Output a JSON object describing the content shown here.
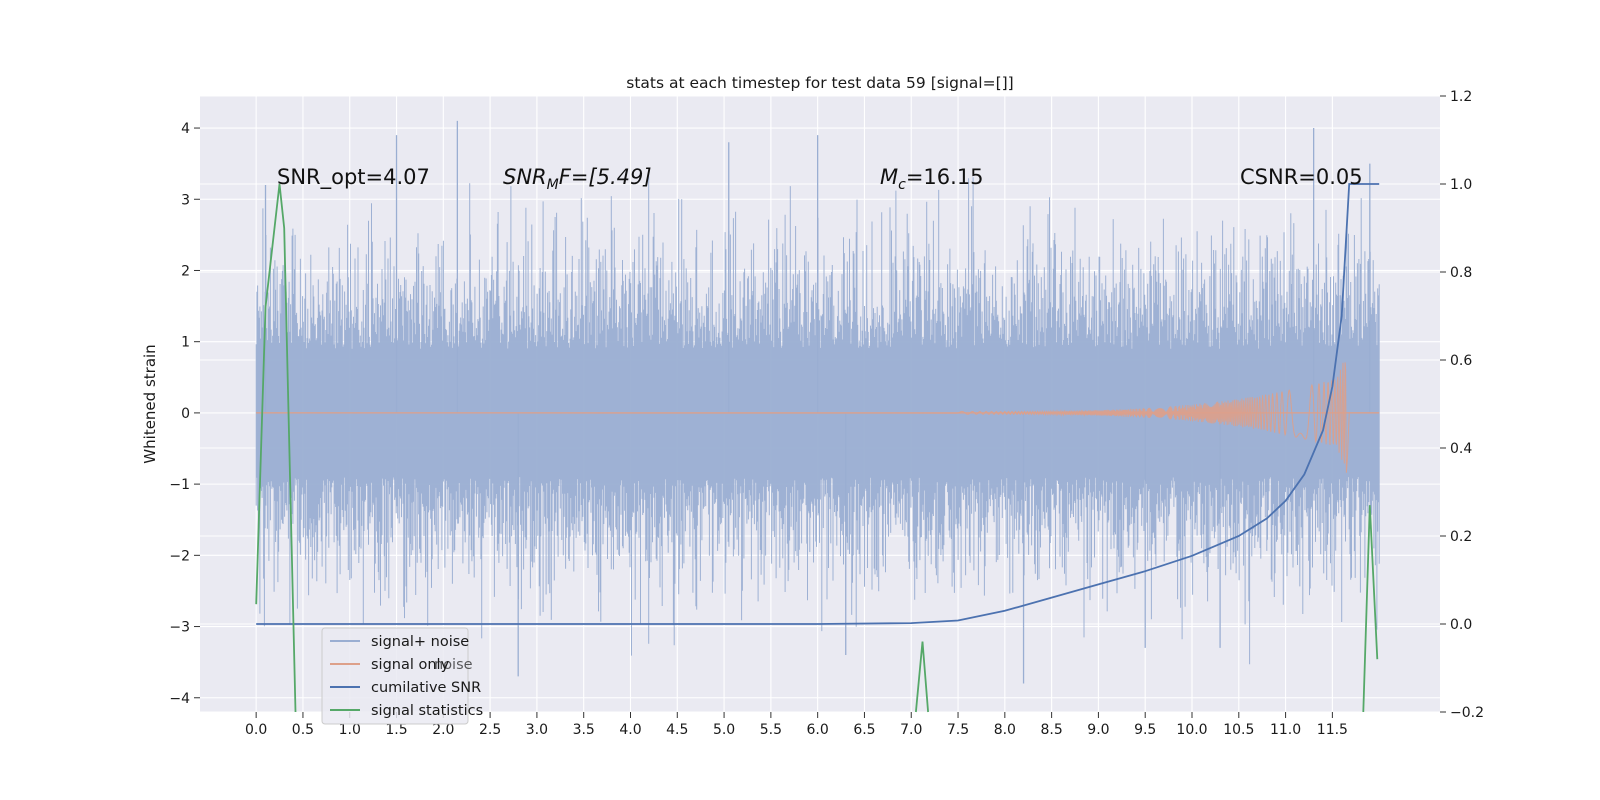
{
  "figure": {
    "title": "stats at each timestep for test data 59 [signal=[]]",
    "ylabel_left": "Whitened strain",
    "background": "#eaeaf2",
    "grid_color": "#ffffff"
  },
  "annotations": {
    "snr_opt": "SNR_opt=4.07",
    "snr_mf_name": "SNR",
    "snr_mf_sub": "M",
    "snr_mf_rest": "F=[5.49]",
    "mc_name": "M",
    "mc_sub": "c",
    "mc_rest": "=16.15",
    "csnr": "CSNR=0.05"
  },
  "legend": {
    "items": [
      {
        "label": "signal+ noise",
        "color": "#9aaed2"
      },
      {
        "label": "signal only",
        "color": "#dda08a"
      },
      {
        "label": "cumilative SNR",
        "color": "#4c72b0"
      },
      {
        "label": "signal statistics",
        "color": "#55a868"
      }
    ],
    "ghost_text": "noise"
  },
  "chart_data": {
    "type": "line",
    "x_axis": {
      "xlim": [
        -0.6,
        12.65
      ],
      "ticks": [
        0.0,
        0.5,
        1.0,
        1.5,
        2.0,
        2.5,
        3.0,
        3.5,
        4.0,
        4.5,
        5.0,
        5.5,
        6.0,
        6.5,
        7.0,
        7.5,
        8.0,
        8.5,
        9.0,
        9.5,
        10.0,
        10.5,
        11.0,
        11.5
      ],
      "tick_labels": [
        "0.0",
        "0.5",
        "1.0",
        "1.5",
        "2.0",
        "2.5",
        "3.0",
        "3.5",
        "4.0",
        "4.5",
        "5.0",
        "5.5",
        "6.0",
        "6.5",
        "7.0",
        "7.5",
        "8.0",
        "8.5",
        "9.0",
        "9.5",
        "10.0",
        "10.5",
        "11.0",
        "11.5"
      ]
    },
    "y_left": {
      "label": "Whitened strain",
      "ylim": [
        -4.2,
        4.45
      ],
      "ticks": [
        -4,
        -3,
        -2,
        -1,
        0,
        1,
        2,
        3,
        4
      ],
      "tick_labels": [
        "−4",
        "−3",
        "−2",
        "−1",
        "0",
        "1",
        "2",
        "3",
        "4"
      ]
    },
    "y_right": {
      "ylim": [
        -0.2,
        1.2
      ],
      "ticks": [
        -0.2,
        0.0,
        0.2,
        0.4,
        0.6,
        0.8,
        1.0,
        1.2
      ],
      "tick_labels": [
        "−0.2",
        "0.0",
        "0.2",
        "0.4",
        "0.6",
        "0.8",
        "1.0",
        "1.2"
      ]
    },
    "series": [
      {
        "name": "signal+ noise",
        "axis": "left",
        "color": "#9aaed2",
        "description": "dense noisy whitened strain over t = 0 to 12",
        "x_range": [
          0.0,
          12.0
        ],
        "envelope": {
          "upper": [
            2.0,
            4.1
          ],
          "lower": [
            -2.0,
            -3.8
          ]
        },
        "peaks": [
          [
            0.1,
            3.2
          ],
          [
            1.5,
            3.9
          ],
          [
            2.15,
            4.1
          ],
          [
            5.05,
            3.8
          ],
          [
            6.0,
            3.9
          ],
          [
            11.3,
            4.0
          ],
          [
            11.9,
            3.5
          ],
          [
            2.8,
            -3.7
          ],
          [
            8.2,
            -3.8
          ],
          [
            6.3,
            -3.4
          ],
          [
            10.3,
            -3.3
          ],
          [
            9.5,
            -3.3
          ]
        ]
      },
      {
        "name": "signal only",
        "axis": "left",
        "color": "#dda08a",
        "description": "chirp signal, amplitude growing until merger near t = 11.65",
        "points": [
          [
            0.0,
            0.0
          ],
          [
            7.5,
            0.02
          ],
          [
            9.0,
            0.06
          ],
          [
            10.0,
            0.1
          ],
          [
            10.5,
            0.15
          ],
          [
            11.0,
            0.25
          ],
          [
            11.3,
            0.35
          ],
          [
            11.5,
            0.5
          ],
          [
            11.62,
            0.85
          ],
          [
            11.66,
            -0.65
          ],
          [
            11.7,
            0.0
          ],
          [
            12.0,
            0.0
          ]
        ]
      },
      {
        "name": "cumilative SNR",
        "axis": "right",
        "color": "#4c72b0",
        "x": [
          0.0,
          6.0,
          7.0,
          7.5,
          8.0,
          8.5,
          9.0,
          9.5,
          10.0,
          10.5,
          10.8,
          11.0,
          11.2,
          11.4,
          11.5,
          11.6,
          11.68,
          12.0
        ],
        "y": [
          0.0,
          0.0,
          0.002,
          0.008,
          0.03,
          0.06,
          0.09,
          0.12,
          0.155,
          0.2,
          0.24,
          0.28,
          0.34,
          0.44,
          0.54,
          0.7,
          1.0,
          1.0
        ]
      },
      {
        "name": "signal statistics",
        "axis": "right",
        "color": "#55a868",
        "segments": [
          [
            [
              0.0,
              0.045
            ],
            [
              0.1,
              0.72
            ],
            [
              0.25,
              1.0
            ],
            [
              0.3,
              0.9
            ],
            [
              0.42,
              -0.2
            ]
          ],
          [
            [
              7.05,
              -0.2
            ],
            [
              7.12,
              -0.04
            ],
            [
              7.18,
              -0.2
            ]
          ],
          [
            [
              11.83,
              -0.2
            ],
            [
              11.9,
              0.27
            ],
            [
              11.98,
              -0.08
            ]
          ]
        ]
      }
    ],
    "grid": true,
    "legend_position": "lower-left"
  }
}
